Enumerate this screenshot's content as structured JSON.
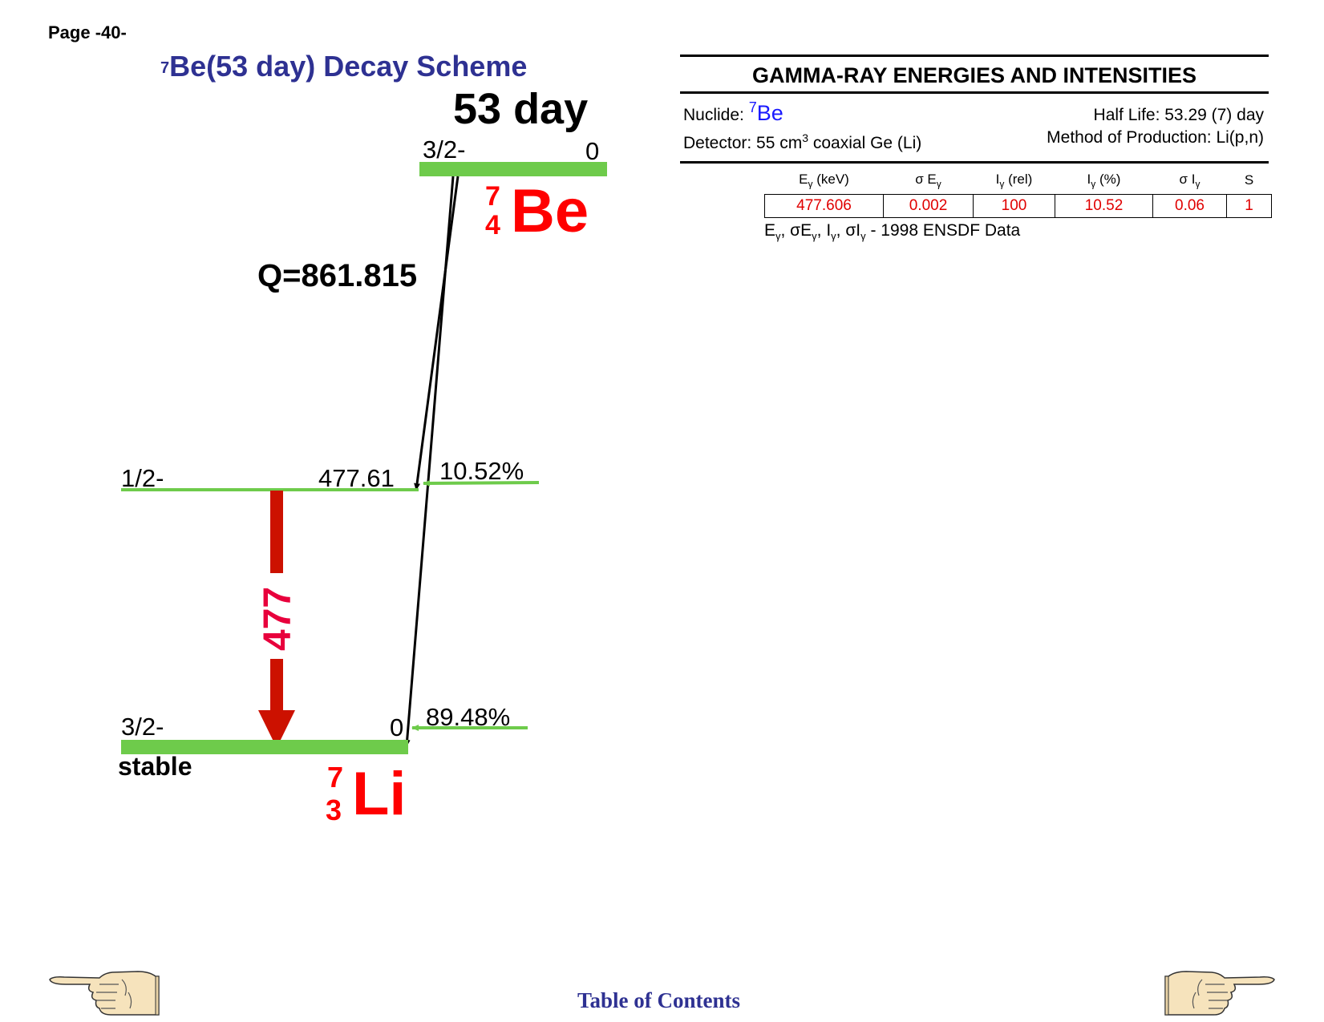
{
  "page_label": "Page -40-",
  "scheme_title": {
    "mass": "7",
    "text": "Be(53 day) Decay Scheme"
  },
  "diagram": {
    "half_life": "53 day",
    "parent": {
      "mass": "7",
      "atomic": "4",
      "symbol": "Be",
      "spin": "3/2-",
      "energy": "0"
    },
    "q_value": "Q=861.815",
    "daughter": {
      "mass": "7",
      "atomic": "3",
      "symbol": "Li"
    },
    "levels": [
      {
        "spin": "1/2-",
        "energy": "477.61",
        "feeding": "10.52%"
      },
      {
        "spin": "3/2-",
        "energy": "0",
        "feeding": "89.48%",
        "status": "stable"
      }
    ],
    "gamma_label": "477",
    "colors": {
      "level": "#6ecb4b",
      "gamma": "#cc1100",
      "gamma_label": "#e8003c",
      "nuclide": "#ff0000"
    }
  },
  "gamma_panel": {
    "heading": "GAMMA-RAY ENERGIES AND INTENSITIES",
    "nuclide_label": "Nuclide:",
    "nuclide_mass": "7",
    "nuclide_symbol": "Be",
    "half_life": "Half Life: 53.29 (7) day",
    "detector_prefix": "Detector: 55 cm",
    "detector_exp": "3",
    "detector_suffix": " coaxial Ge (Li)",
    "method": "Method of Production: Li(p,n)",
    "columns": [
      {
        "pre": "E",
        "sub": "γ",
        "post": " (keV)"
      },
      {
        "pre": "σ E",
        "sub": "γ",
        "post": ""
      },
      {
        "pre": "I",
        "sub": "γ",
        "post": " (rel)"
      },
      {
        "pre": "I",
        "sub": "γ",
        "post": " (%)"
      },
      {
        "pre": "σ I",
        "sub": "γ",
        "post": ""
      },
      {
        "pre": "S",
        "sub": "",
        "post": ""
      }
    ],
    "rows": [
      [
        "477.606",
        "0.002",
        "100",
        "10.52",
        "0.06",
        "1"
      ]
    ],
    "note": "- 1998 ENSDF Data"
  },
  "footer": {
    "toc": "Table of Contents"
  }
}
